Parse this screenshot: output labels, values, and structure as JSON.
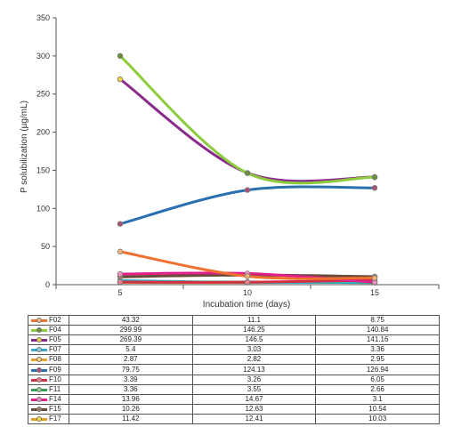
{
  "chart_data": {
    "type": "line",
    "xlabel": "Incubation time (days)",
    "ylabel": "P solubilization (µg/mL)",
    "categories": [
      "5",
      "10",
      "15"
    ],
    "ylim": [
      0,
      350
    ],
    "yticks": [
      0,
      50,
      100,
      150,
      200,
      250,
      300,
      350
    ],
    "grid": false,
    "legend": "table below chart",
    "series": [
      {
        "name": "F02",
        "values": [
          43.32,
          11.1,
          8.75
        ],
        "color": "#f07030",
        "marker": "#f3b37a"
      },
      {
        "name": "F04",
        "values": [
          299.99,
          146.25,
          140.84
        ],
        "color": "#8ccc3c",
        "marker": "#6a8f3a"
      },
      {
        "name": "F05",
        "values": [
          269.39,
          146.5,
          141.16
        ],
        "color": "#8a2b8c",
        "marker": "#f2d23a"
      },
      {
        "name": "F07",
        "values": [
          5.4,
          3.03,
          3.36
        ],
        "color": "#3aa8c8",
        "marker": "#8fd0e6"
      },
      {
        "name": "F08",
        "values": [
          2.87,
          2.82,
          2.95
        ],
        "color": "#e8a030",
        "marker": "#f5d080"
      },
      {
        "name": "F09",
        "values": [
          79.75,
          124.13,
          126.94
        ],
        "color": "#2a70b0",
        "marker": "#b0507a"
      },
      {
        "name": "F10",
        "values": [
          3.39,
          3.26,
          6.05
        ],
        "color": "#d03040",
        "marker": "#e88090"
      },
      {
        "name": "F11",
        "values": [
          3.36,
          3.55,
          2.66
        ],
        "color": "#30a050",
        "marker": "#90d090"
      },
      {
        "name": "F14",
        "values": [
          13.96,
          14.67,
          3.1
        ],
        "color": "#e0208a",
        "marker": "#f090c0"
      },
      {
        "name": "F15",
        "values": [
          10.26,
          12.63,
          10.54
        ],
        "color": "#6a4a3a",
        "marker": "#a08070"
      },
      {
        "name": "F17",
        "values": [
          11.42,
          12.41,
          10.03
        ],
        "color": "#e0a020",
        "marker": "#f0e050"
      }
    ]
  }
}
